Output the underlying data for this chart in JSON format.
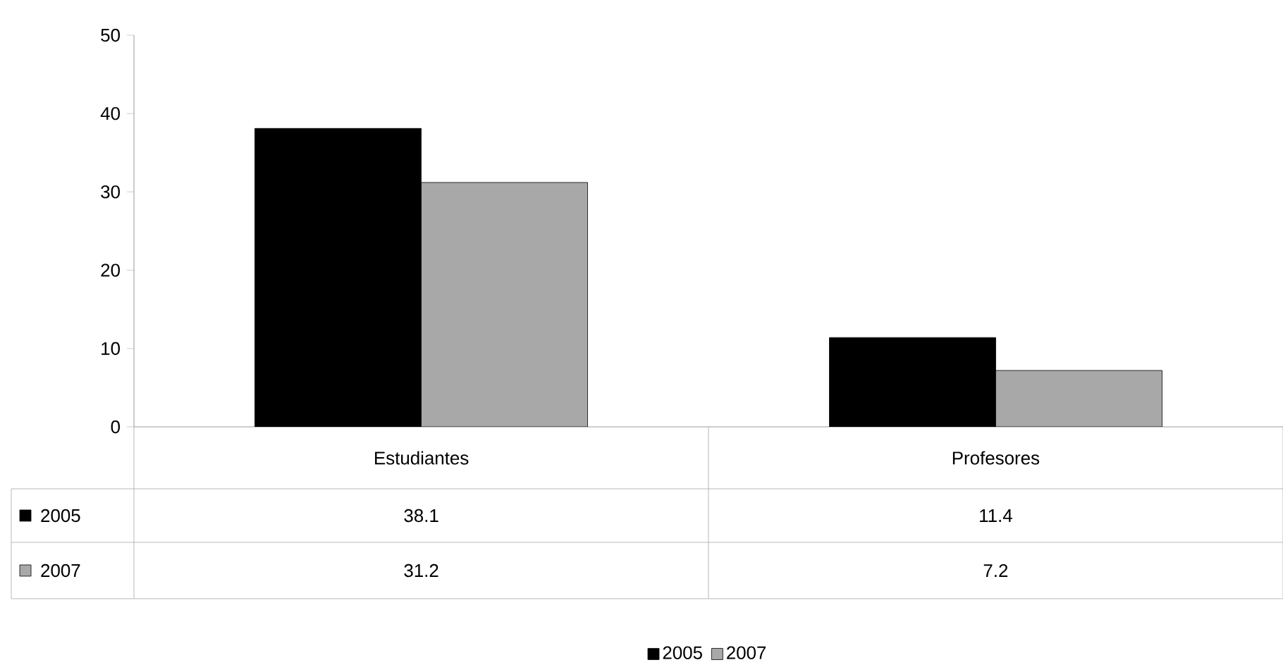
{
  "chart_data": {
    "type": "bar",
    "categories": [
      "Estudiantes",
      "Profesores"
    ],
    "series": [
      {
        "name": "2005",
        "color": "#000000",
        "values": [
          38.1,
          11.4
        ]
      },
      {
        "name": "2007",
        "color": "#a8a8a8",
        "values": [
          31.2,
          7.2
        ]
      }
    ],
    "ylim": [
      0,
      50
    ],
    "yticks": [
      0,
      10,
      20,
      30,
      40,
      50
    ],
    "data_labels": true,
    "legend": "bottom"
  }
}
